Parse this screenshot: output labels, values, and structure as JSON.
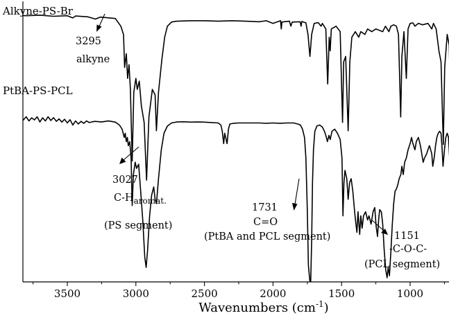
{
  "chart_data": {
    "type": "line",
    "title": "",
    "xlabel": "Wavenumbers (cm",
    "xlabel_sup": "-1",
    "xlabel_close": ")",
    "ylabel": "",
    "x_reversed": true,
    "xlim": [
      3900,
      650
    ],
    "x_ticks": [
      3500,
      3000,
      2500,
      2000,
      1500,
      1000
    ],
    "x_tick_labels": [
      "3500",
      "3000",
      "2500",
      "2000",
      "1500",
      "1000"
    ],
    "grid": false,
    "y_units": "relative transmittance (0 = baseline top, 100 = frame bottom)",
    "series": [
      {
        "name": "Alkyne-PS-Br",
        "points": [
          [
            3880,
            3.0
          ],
          [
            3800,
            3.2
          ],
          [
            3700,
            3.0
          ],
          [
            3600,
            3.4
          ],
          [
            3500,
            3.2
          ],
          [
            3460,
            4.0
          ],
          [
            3440,
            3.3
          ],
          [
            3350,
            3.6
          ],
          [
            3295,
            4.4
          ],
          [
            3260,
            3.7
          ],
          [
            3150,
            4.2
          ],
          [
            3110,
            7.0
          ],
          [
            3090,
            10.0
          ],
          [
            3082,
            22.0
          ],
          [
            3070,
            17.0
          ],
          [
            3060,
            26.0
          ],
          [
            3050,
            21.0
          ],
          [
            3040,
            30.0
          ],
          [
            3027,
            56.0
          ],
          [
            3015,
            31.0
          ],
          [
            3000,
            26.0
          ],
          [
            2990,
            30.0
          ],
          [
            2975,
            27.0
          ],
          [
            2960,
            36.0
          ],
          [
            2940,
            42.0
          ],
          [
            2922,
            63.0
          ],
          [
            2905,
            40.0
          ],
          [
            2880,
            30.0
          ],
          [
            2860,
            32.0
          ],
          [
            2850,
            45.0
          ],
          [
            2835,
            31.0
          ],
          [
            2810,
            19.0
          ],
          [
            2790,
            11.0
          ],
          [
            2770,
            7.0
          ],
          [
            2740,
            5.5
          ],
          [
            2700,
            5.2
          ],
          [
            2600,
            5.0
          ],
          [
            2500,
            5.0
          ],
          [
            2400,
            5.2
          ],
          [
            2300,
            5.0
          ],
          [
            2200,
            5.2
          ],
          [
            2100,
            5.4
          ],
          [
            2050,
            5.0
          ],
          [
            2000,
            6.0
          ],
          [
            1945,
            5.0
          ],
          [
            1940,
            8.0
          ],
          [
            1935,
            5.5
          ],
          [
            1880,
            5.2
          ],
          [
            1870,
            7.0
          ],
          [
            1860,
            5.5
          ],
          [
            1802,
            5.4
          ],
          [
            1795,
            7.0
          ],
          [
            1790,
            5.3
          ],
          [
            1760,
            5.8
          ],
          [
            1745,
            10.0
          ],
          [
            1731,
            18.0
          ],
          [
            1718,
            10.0
          ],
          [
            1700,
            6.0
          ],
          [
            1670,
            5.7
          ],
          [
            1650,
            7.0
          ],
          [
            1640,
            6.0
          ],
          [
            1615,
            8.0
          ],
          [
            1601,
            28.0
          ],
          [
            1590,
            11.0
          ],
          [
            1583,
            16.0
          ],
          [
            1575,
            8.0
          ],
          [
            1540,
            7.0
          ],
          [
            1510,
            9.0
          ],
          [
            1493,
            42.0
          ],
          [
            1485,
            20.0
          ],
          [
            1470,
            18.0
          ],
          [
            1452,
            45.0
          ],
          [
            1440,
            20.0
          ],
          [
            1425,
            11.0
          ],
          [
            1400,
            9.0
          ],
          [
            1375,
            11.0
          ],
          [
            1360,
            9.0
          ],
          [
            1330,
            10.0
          ],
          [
            1310,
            8.0
          ],
          [
            1280,
            9.0
          ],
          [
            1250,
            8.0
          ],
          [
            1200,
            9.0
          ],
          [
            1180,
            7.0
          ],
          [
            1155,
            9.0
          ],
          [
            1140,
            7.0
          ],
          [
            1120,
            6.5
          ],
          [
            1100,
            7.0
          ],
          [
            1085,
            10.0
          ],
          [
            1069,
            40.0
          ],
          [
            1060,
            18.0
          ],
          [
            1045,
            9.0
          ],
          [
            1028,
            26.0
          ],
          [
            1015,
            8.0
          ],
          [
            1000,
            6.0
          ],
          [
            980,
            5.8
          ],
          [
            965,
            7.0
          ],
          [
            940,
            6.0
          ],
          [
            910,
            6.5
          ],
          [
            870,
            6.0
          ],
          [
            842,
            8.0
          ],
          [
            830,
            6.0
          ],
          [
            810,
            8.0
          ],
          [
            790,
            16.0
          ],
          [
            775,
            20.0
          ],
          [
            758,
            50.0
          ],
          [
            748,
            22.0
          ],
          [
            730,
            10.0
          ],
          [
            715,
            14.0
          ],
          [
            699,
            48.0
          ],
          [
            690,
            16.0
          ],
          [
            680,
            8.0
          ],
          [
            670,
            6.0
          ],
          [
            650,
            5.5
          ]
        ]
      },
      {
        "name": "PtBA-PS-PCL",
        "points": [
          [
            3880,
            20.0
          ],
          [
            3860,
            21.0
          ],
          [
            3840,
            19.5
          ],
          [
            3820,
            21.5
          ],
          [
            3800,
            20.0
          ],
          [
            3780,
            22.0
          ],
          [
            3760,
            20.5
          ],
          [
            3740,
            21.5
          ],
          [
            3720,
            20.0
          ],
          [
            3700,
            22.5
          ],
          [
            3680,
            20.5
          ],
          [
            3660,
            22.0
          ],
          [
            3640,
            20.0
          ],
          [
            3620,
            21.8
          ],
          [
            3600,
            20.4
          ],
          [
            3580,
            22.2
          ],
          [
            3560,
            21.0
          ],
          [
            3540,
            22.6
          ],
          [
            3520,
            21.2
          ],
          [
            3500,
            23.0
          ],
          [
            3480,
            21.4
          ],
          [
            3460,
            24.0
          ],
          [
            3440,
            22.0
          ],
          [
            3420,
            23.5
          ],
          [
            3400,
            22.2
          ],
          [
            3380,
            23.2
          ],
          [
            3360,
            22.0
          ],
          [
            3340,
            22.8
          ],
          [
            3300,
            22.2
          ],
          [
            3250,
            22.5
          ],
          [
            3200,
            22.0
          ],
          [
            3150,
            22.6
          ],
          [
            3120,
            24.0
          ],
          [
            3100,
            26.0
          ],
          [
            3085,
            30.0
          ],
          [
            3078,
            28.0
          ],
          [
            3070,
            32.0
          ],
          [
            3062,
            30.0
          ],
          [
            3055,
            34.0
          ],
          [
            3045,
            32.0
          ],
          [
            3035,
            40.0
          ],
          [
            3027,
            63.0
          ],
          [
            3018,
            48.0
          ],
          [
            3005,
            42.0
          ],
          [
            2995,
            45.0
          ],
          [
            2980,
            43.0
          ],
          [
            2965,
            56.0
          ],
          [
            2950,
            70.0
          ],
          [
            2935,
            88.0
          ],
          [
            2925,
            93.0
          ],
          [
            2915,
            85.0
          ],
          [
            2900,
            68.0
          ],
          [
            2885,
            58.0
          ],
          [
            2870,
            54.0
          ],
          [
            2860,
            60.0
          ],
          [
            2850,
            62.0
          ],
          [
            2835,
            50.0
          ],
          [
            2815,
            36.0
          ],
          [
            2795,
            28.0
          ],
          [
            2770,
            24.5
          ],
          [
            2740,
            23.0
          ],
          [
            2700,
            22.5
          ],
          [
            2650,
            22.4
          ],
          [
            2600,
            22.6
          ],
          [
            2550,
            22.5
          ],
          [
            2500,
            22.6
          ],
          [
            2450,
            22.8
          ],
          [
            2400,
            23.0
          ],
          [
            2380,
            24.0
          ],
          [
            2370,
            27.0
          ],
          [
            2360,
            33.0
          ],
          [
            2352,
            28.0
          ],
          [
            2345,
            30.0
          ],
          [
            2335,
            33.0
          ],
          [
            2325,
            26.0
          ],
          [
            2315,
            23.5
          ],
          [
            2290,
            23.2
          ],
          [
            2250,
            23.0
          ],
          [
            2200,
            23.0
          ],
          [
            2150,
            23.0
          ],
          [
            2100,
            23.0
          ],
          [
            2050,
            23.2
          ],
          [
            2000,
            23.0
          ],
          [
            1950,
            23.2
          ],
          [
            1900,
            23.0
          ],
          [
            1850,
            23.0
          ],
          [
            1820,
            23.5
          ],
          [
            1800,
            24.0
          ],
          [
            1785,
            26.0
          ],
          [
            1770,
            30.0
          ],
          [
            1760,
            40.0
          ],
          [
            1750,
            65.0
          ],
          [
            1742,
            92.0
          ],
          [
            1731,
            100.0
          ],
          [
            1725,
            100.0
          ],
          [
            1718,
            80.0
          ],
          [
            1712,
            52.0
          ],
          [
            1705,
            36.0
          ],
          [
            1695,
            27.0
          ],
          [
            1680,
            24.5
          ],
          [
            1660,
            24.0
          ],
          [
            1640,
            25.0
          ],
          [
            1625,
            27.0
          ],
          [
            1615,
            29.0
          ],
          [
            1603,
            32.0
          ],
          [
            1592,
            29.0
          ],
          [
            1583,
            31.0
          ],
          [
            1570,
            27.0
          ],
          [
            1550,
            26.0
          ],
          [
            1530,
            28.0
          ],
          [
            1510,
            31.0
          ],
          [
            1497,
            40.0
          ],
          [
            1490,
            68.0
          ],
          [
            1483,
            52.0
          ],
          [
            1475,
            46.0
          ],
          [
            1462,
            50.0
          ],
          [
            1452,
            60.0
          ],
          [
            1442,
            52.0
          ],
          [
            1430,
            50.0
          ],
          [
            1418,
            56.0
          ],
          [
            1405,
            66.0
          ],
          [
            1395,
            72.0
          ],
          [
            1388,
            76.0
          ],
          [
            1380,
            66.0
          ],
          [
            1368,
            77.0
          ],
          [
            1360,
            68.0
          ],
          [
            1350,
            74.0
          ],
          [
            1340,
            68.0
          ],
          [
            1325,
            66.0
          ],
          [
            1310,
            70.0
          ],
          [
            1300,
            68.0
          ],
          [
            1285,
            72.0
          ],
          [
            1270,
            66.0
          ],
          [
            1258,
            64.0
          ],
          [
            1248,
            73.0
          ],
          [
            1238,
            78.0
          ],
          [
            1230,
            70.0
          ],
          [
            1222,
            65.0
          ],
          [
            1210,
            66.0
          ],
          [
            1200,
            72.0
          ],
          [
            1190,
            84.0
          ],
          [
            1178,
            94.0
          ],
          [
            1168,
            98.0
          ],
          [
            1160,
            93.0
          ],
          [
            1151,
            97.0
          ],
          [
            1140,
            85.0
          ],
          [
            1130,
            72.0
          ],
          [
            1120,
            62.0
          ],
          [
            1110,
            56.0
          ],
          [
            1100,
            55.0
          ],
          [
            1090,
            53.0
          ],
          [
            1080,
            50.0
          ],
          [
            1068,
            48.0
          ],
          [
            1060,
            44.0
          ],
          [
            1050,
            48.0
          ],
          [
            1040,
            42.0
          ],
          [
            1028,
            40.0
          ],
          [
            1015,
            36.0
          ],
          [
            1000,
            33.0
          ],
          [
            990,
            30.0
          ],
          [
            980,
            33.0
          ],
          [
            965,
            36.0
          ],
          [
            955,
            32.0
          ],
          [
            940,
            30.0
          ],
          [
            925,
            34.0
          ],
          [
            915,
            38.0
          ],
          [
            905,
            42.0
          ],
          [
            895,
            40.0
          ],
          [
            880,
            38.0
          ],
          [
            870,
            36.0
          ],
          [
            860,
            34.0
          ],
          [
            850,
            36.0
          ],
          [
            842,
            38.0
          ],
          [
            835,
            44.0
          ],
          [
            825,
            40.0
          ],
          [
            815,
            34.0
          ],
          [
            805,
            30.0
          ],
          [
            795,
            28.0
          ],
          [
            785,
            27.0
          ],
          [
            775,
            28.0
          ],
          [
            768,
            34.0
          ],
          [
            760,
            44.0
          ],
          [
            750,
            36.0
          ],
          [
            740,
            30.0
          ],
          [
            730,
            28.0
          ],
          [
            720,
            30.0
          ],
          [
            712,
            40.0
          ],
          [
            705,
            60.0
          ],
          [
            699,
            82.0
          ],
          [
            692,
            58.0
          ],
          [
            685,
            36.0
          ],
          [
            675,
            28.0
          ],
          [
            665,
            26.0
          ],
          [
            650,
            25.0
          ]
        ]
      }
    ],
    "annotations": {
      "alkyne_wn": "3295",
      "alkyne_text": "alkyne",
      "ch_wn": "3027",
      "ch_main": "C-H",
      "ch_sub": "aromat.",
      "ch_segment": "(PS segment)",
      "co_wn": "1731",
      "co_text": "C=O",
      "co_segment": "(PtBA and PCL segment)",
      "coc_wn": "1151",
      "coc_text": "-C-O-C-",
      "coc_segment": "(PCL segment)"
    }
  }
}
